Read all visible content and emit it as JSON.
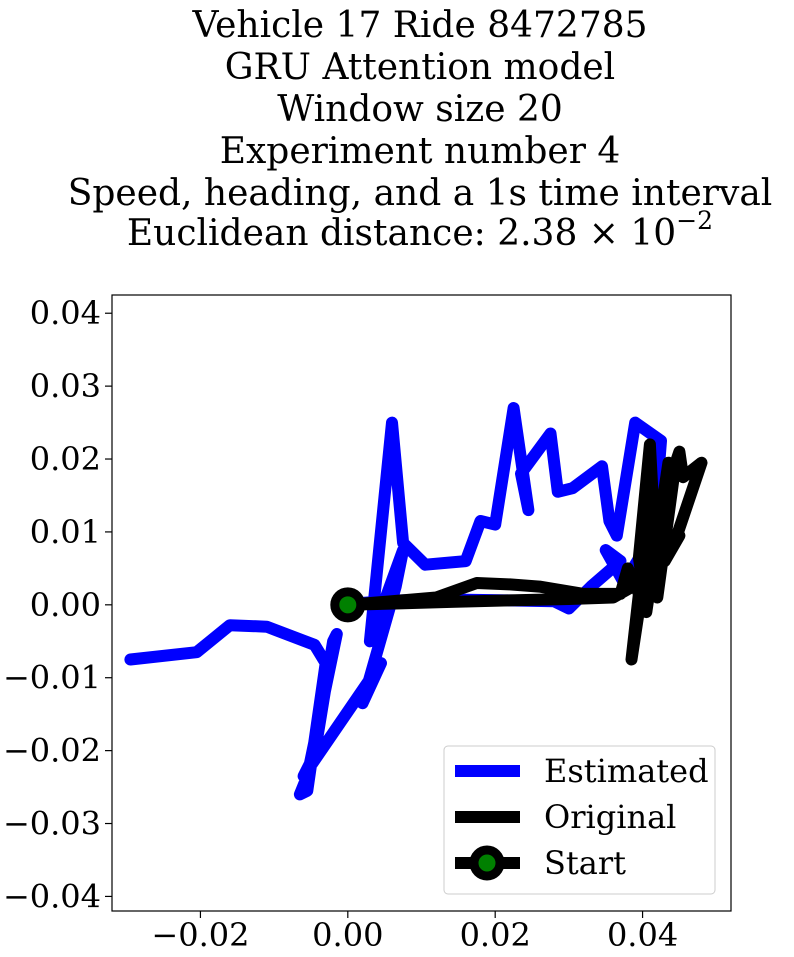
{
  "chart_data": {
    "type": "line",
    "title_lines": [
      "Vehicle 17 Ride 8472785",
      "GRU Attention model",
      "Window size 20",
      "Experiment number 4",
      "Speed, heading, and a 1s time interval"
    ],
    "title_last_prefix": "Euclidean distance: 2.38 × 10",
    "title_last_exponent": "−2",
    "xlim": [
      -0.032,
      0.052
    ],
    "ylim": [
      -0.042,
      0.0425
    ],
    "xticks": [
      -0.02,
      0.0,
      0.02,
      0.04
    ],
    "xtick_labels": [
      "−0.02",
      "0.00",
      "0.02",
      "0.04"
    ],
    "yticks": [
      0.04,
      0.03,
      0.02,
      0.01,
      0.0,
      -0.01,
      -0.02,
      -0.03,
      -0.04
    ],
    "ytick_labels": [
      "0.04",
      "0.03",
      "0.02",
      "0.01",
      "0.00",
      "−0.01",
      "−0.02",
      "−0.03",
      "−0.04"
    ],
    "grid": false,
    "legend_position": "bottom-right",
    "series": [
      {
        "name": "Estimated",
        "color": "#0000ff",
        "points": [
          [
            -0.0295,
            -0.0075
          ],
          [
            -0.0205,
            -0.0065
          ],
          [
            -0.016,
            -0.0028
          ],
          [
            -0.011,
            -0.003
          ],
          [
            -0.0045,
            -0.0055
          ],
          [
            -0.003,
            -0.008
          ],
          [
            -0.0055,
            -0.0255
          ],
          [
            -0.0065,
            -0.026
          ],
          [
            -0.0055,
            -0.0235
          ],
          [
            -0.0015,
            -0.004
          ],
          [
            -0.002,
            -0.005
          ],
          [
            -0.0045,
            -0.0205
          ],
          [
            -0.006,
            -0.0235
          ],
          [
            0.0045,
            -0.008
          ],
          [
            0.002,
            -0.0135
          ],
          [
            0.0065,
            0.0025
          ],
          [
            0.0075,
            0.0075
          ],
          [
            0.003,
            -0.005
          ],
          [
            0.006,
            0.025
          ],
          [
            0.0075,
            0.0085
          ],
          [
            0.0105,
            0.0055
          ],
          [
            0.016,
            0.006
          ],
          [
            0.018,
            0.0115
          ],
          [
            0.02,
            0.011
          ],
          [
            0.0225,
            0.027
          ],
          [
            0.0245,
            0.013
          ],
          [
            0.0235,
            0.018
          ],
          [
            0.0275,
            0.0235
          ],
          [
            0.0285,
            0.0155
          ],
          [
            0.0305,
            0.016
          ],
          [
            0.0345,
            0.019
          ],
          [
            0.0355,
            0.0115
          ],
          [
            0.0365,
            0.0095
          ],
          [
            0.039,
            0.025
          ],
          [
            0.0425,
            0.0225
          ],
          [
            0.042,
            0.016
          ],
          [
            0.0405,
            0.008
          ],
          [
            0.0375,
            0.003
          ],
          [
            0.035,
            0.0075
          ],
          [
            0.037,
            0.006
          ],
          [
            0.033,
            0.0025
          ],
          [
            0.03,
            -0.0005
          ],
          [
            0.028,
            0.0005
          ],
          [
            0.016,
            0.0007
          ],
          [
            0.007,
            0.0006
          ],
          [
            0.004,
            0.0004
          ],
          [
            0.001,
            0.0002
          ]
        ]
      },
      {
        "name": "Original",
        "color": "#000000",
        "points": [
          [
            0.0,
            0.0
          ],
          [
            0.006,
            0.0005
          ],
          [
            0.012,
            0.001
          ],
          [
            0.0175,
            0.003
          ],
          [
            0.022,
            0.0028
          ],
          [
            0.026,
            0.0025
          ],
          [
            0.032,
            0.0015
          ],
          [
            0.037,
            0.0015
          ],
          [
            0.038,
            0.005
          ],
          [
            0.0395,
            0.0015
          ],
          [
            0.0385,
            -0.0075
          ],
          [
            0.0415,
            0.0125
          ],
          [
            0.041,
            0.022
          ],
          [
            0.0395,
            0.0065
          ],
          [
            0.0405,
            -0.001
          ],
          [
            0.0435,
            0.0195
          ],
          [
            0.0415,
            0.004
          ],
          [
            0.042,
            0.001
          ],
          [
            0.0445,
            0.0195
          ],
          [
            0.045,
            0.021
          ],
          [
            0.0455,
            0.0175
          ],
          [
            0.048,
            0.0195
          ],
          [
            0.0445,
            0.009
          ],
          [
            0.045,
            0.0095
          ],
          [
            0.043,
            0.006
          ],
          [
            0.0395,
            0.003
          ],
          [
            0.036,
            0.001
          ],
          [
            0.03,
            0.0008
          ],
          [
            0.022,
            0.0006
          ],
          [
            0.014,
            0.0004
          ],
          [
            0.007,
            0.0002
          ],
          [
            0.0,
            0.0
          ]
        ]
      },
      {
        "name": "Start",
        "color": "#000000",
        "marker_face_color": "#008000",
        "points": [
          [
            0.0,
            0.0
          ]
        ]
      }
    ],
    "legend_entries": [
      {
        "label": "Estimated",
        "color": "#0000ff",
        "marker": false
      },
      {
        "label": "Original",
        "color": "#000000",
        "marker": false
      },
      {
        "label": "Start",
        "color": "#000000",
        "marker": true
      }
    ]
  }
}
